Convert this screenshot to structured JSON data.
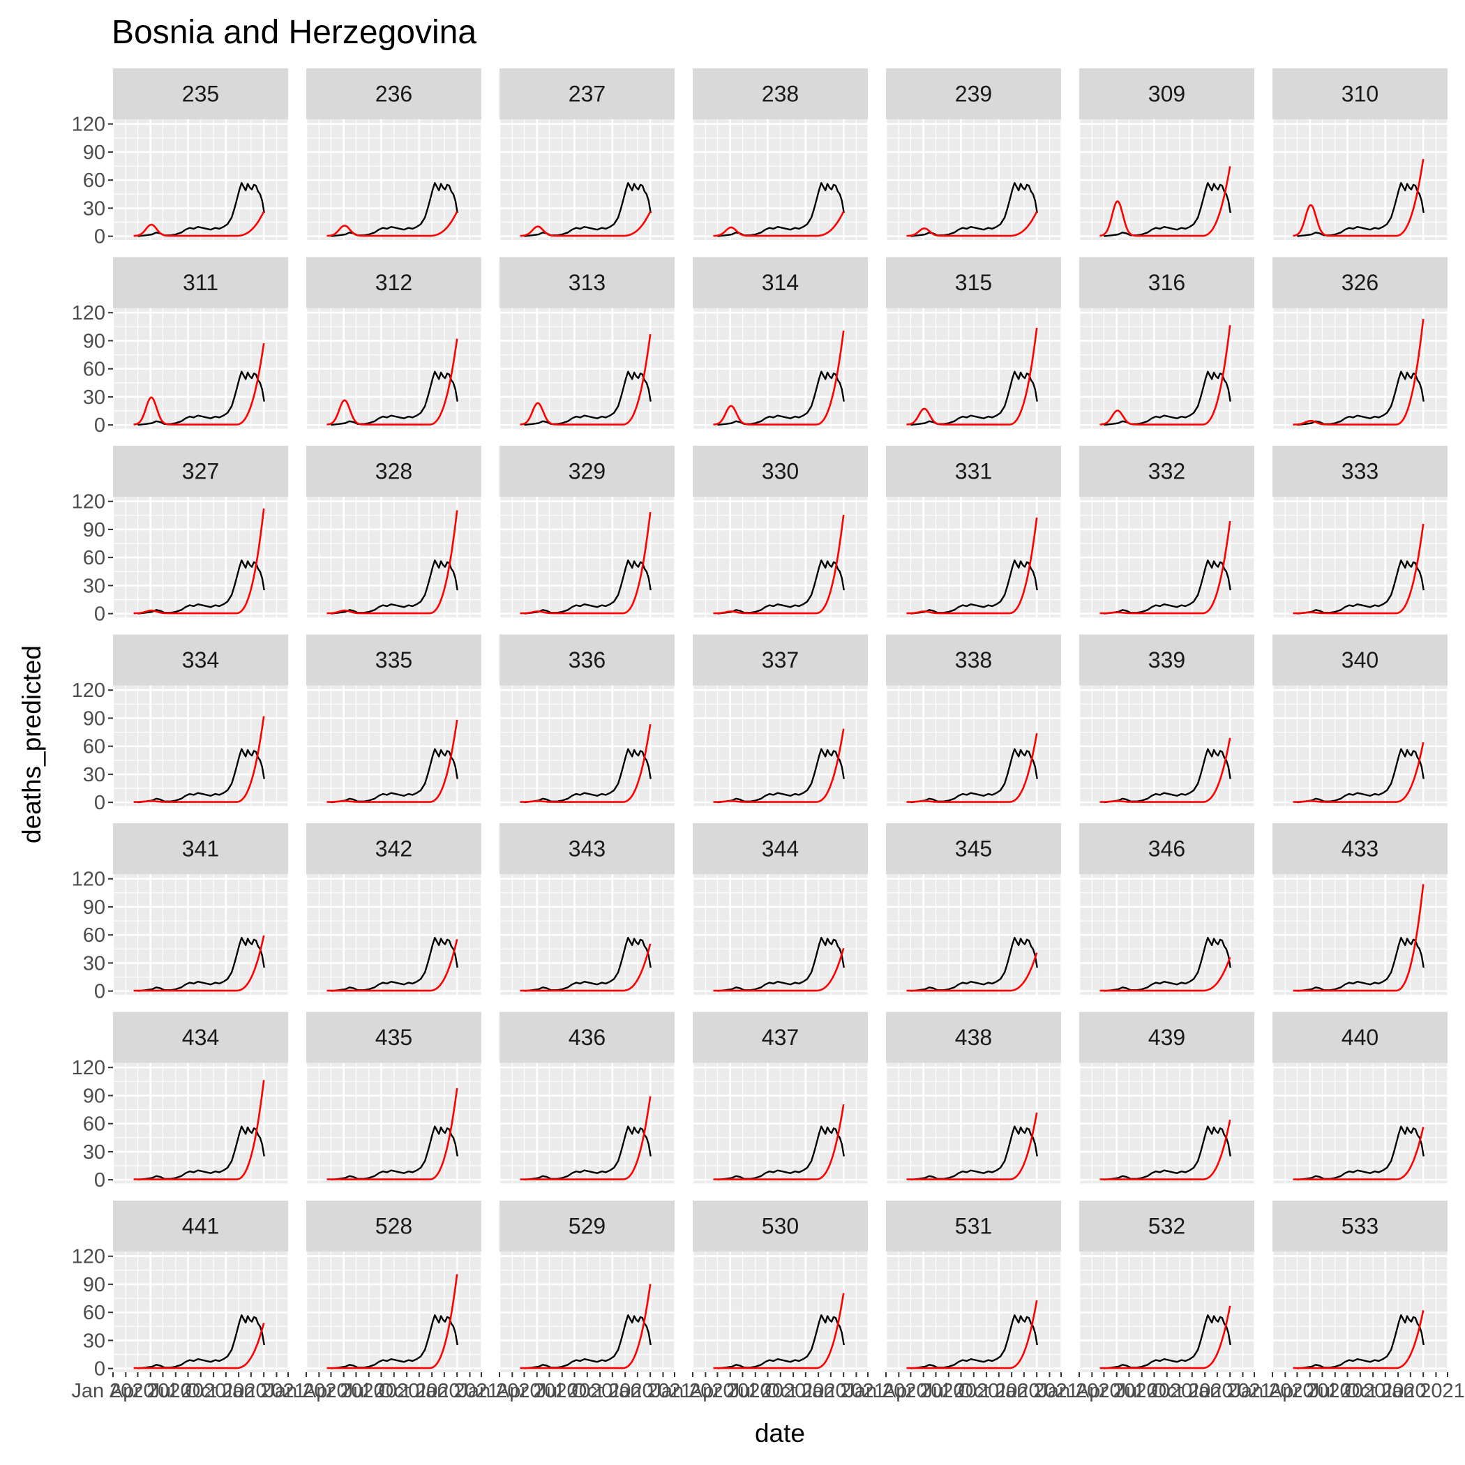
{
  "chart_data": {
    "type": "line",
    "title": "Bosnia and Herzegovina",
    "xlabel": "date",
    "ylabel": "deaths_predicted",
    "ylim": [
      -4,
      125
    ],
    "y_ticks": [
      0,
      30,
      60,
      90,
      120
    ],
    "x_ticks": [
      "Jan 2020",
      "Apr 2020",
      "Jul 2020",
      "Oct 2020",
      "Jan 2021"
    ],
    "x_range": [
      "2020-01-01",
      "2021-03-01"
    ],
    "grid": true,
    "panel_background": "#ebebeb",
    "strip_background": "#d9d9d9",
    "grid_color": "#ffffff",
    "colors": {
      "observed": "#000000",
      "predicted": "#ff0000"
    },
    "observed": {
      "dates": [
        "2020-03-01",
        "2020-03-20",
        "2020-04-05",
        "2020-04-15",
        "2020-04-25",
        "2020-05-05",
        "2020-05-20",
        "2020-06-01",
        "2020-06-15",
        "2020-06-25",
        "2020-07-05",
        "2020-07-15",
        "2020-07-25",
        "2020-08-05",
        "2020-08-15",
        "2020-08-25",
        "2020-09-05",
        "2020-09-15",
        "2020-09-25",
        "2020-10-05",
        "2020-10-15",
        "2020-10-22",
        "2020-10-28",
        "2020-11-03",
        "2020-11-08",
        "2020-11-13",
        "2020-11-18",
        "2020-11-23",
        "2020-11-28",
        "2020-12-03",
        "2020-12-08",
        "2020-12-13",
        "2020-12-18",
        "2020-12-23",
        "2020-12-28",
        "2021-01-02"
      ],
      "values": [
        0,
        1,
        2,
        4,
        3,
        1,
        1,
        2,
        4,
        7,
        9,
        8,
        10,
        9,
        8,
        7,
        9,
        8,
        10,
        13,
        20,
        30,
        40,
        50,
        57,
        53,
        49,
        56,
        52,
        50,
        55,
        54,
        48,
        45,
        38,
        25
      ]
    },
    "facets": [
      {
        "id": "235",
        "peak1": 12,
        "end": 27
      },
      {
        "id": "236",
        "peak1": 11,
        "end": 27
      },
      {
        "id": "237",
        "peak1": 10,
        "end": 27
      },
      {
        "id": "238",
        "peak1": 9,
        "end": 27
      },
      {
        "id": "239",
        "peak1": 8,
        "end": 27
      },
      {
        "id": "309",
        "peak1": 37,
        "end": 77
      },
      {
        "id": "310",
        "peak1": 33,
        "end": 85
      },
      {
        "id": "311",
        "peak1": 29,
        "end": 90
      },
      {
        "id": "312",
        "peak1": 26,
        "end": 95
      },
      {
        "id": "313",
        "peak1": 23,
        "end": 100
      },
      {
        "id": "314",
        "peak1": 20,
        "end": 104
      },
      {
        "id": "315",
        "peak1": 17,
        "end": 107
      },
      {
        "id": "316",
        "peak1": 15,
        "end": 110
      },
      {
        "id": "326",
        "peak1": 4,
        "end": 117
      },
      {
        "id": "327",
        "peak1": 3,
        "end": 116
      },
      {
        "id": "328",
        "peak1": 3,
        "end": 114
      },
      {
        "id": "329",
        "peak1": 2,
        "end": 112
      },
      {
        "id": "330",
        "peak1": 2,
        "end": 109
      },
      {
        "id": "331",
        "peak1": 2,
        "end": 106
      },
      {
        "id": "332",
        "peak1": 1,
        "end": 102
      },
      {
        "id": "333",
        "peak1": 1,
        "end": 99
      },
      {
        "id": "334",
        "peak1": 1,
        "end": 95
      },
      {
        "id": "335",
        "peak1": 1,
        "end": 91
      },
      {
        "id": "336",
        "peak1": 1,
        "end": 86
      },
      {
        "id": "337",
        "peak1": 1,
        "end": 81
      },
      {
        "id": "338",
        "peak1": 1,
        "end": 76
      },
      {
        "id": "339",
        "peak1": 1,
        "end": 71
      },
      {
        "id": "340",
        "peak1": 1,
        "end": 66
      },
      {
        "id": "341",
        "peak1": 0,
        "end": 61
      },
      {
        "id": "342",
        "peak1": 0,
        "end": 57
      },
      {
        "id": "343",
        "peak1": 0,
        "end": 52
      },
      {
        "id": "344",
        "peak1": 0,
        "end": 47
      },
      {
        "id": "345",
        "peak1": 0,
        "end": 42
      },
      {
        "id": "346",
        "peak1": 0,
        "end": 37
      },
      {
        "id": "433",
        "peak1": 0,
        "end": 118
      },
      {
        "id": "434",
        "peak1": 0,
        "end": 110
      },
      {
        "id": "435",
        "peak1": 0,
        "end": 101
      },
      {
        "id": "436",
        "peak1": 0,
        "end": 92
      },
      {
        "id": "437",
        "peak1": 0,
        "end": 83
      },
      {
        "id": "438",
        "peak1": 0,
        "end": 74
      },
      {
        "id": "439",
        "peak1": 0,
        "end": 66
      },
      {
        "id": "440",
        "peak1": 0,
        "end": 58
      },
      {
        "id": "441",
        "peak1": 0,
        "end": 50
      },
      {
        "id": "528",
        "peak1": 0,
        "end": 104
      },
      {
        "id": "529",
        "peak1": 0,
        "end": 93
      },
      {
        "id": "530",
        "peak1": 0,
        "end": 83
      },
      {
        "id": "531",
        "peak1": 0,
        "end": 75
      },
      {
        "id": "532",
        "peak1": 0,
        "end": 69
      },
      {
        "id": "533",
        "peak1": 0,
        "end": 64
      }
    ]
  }
}
